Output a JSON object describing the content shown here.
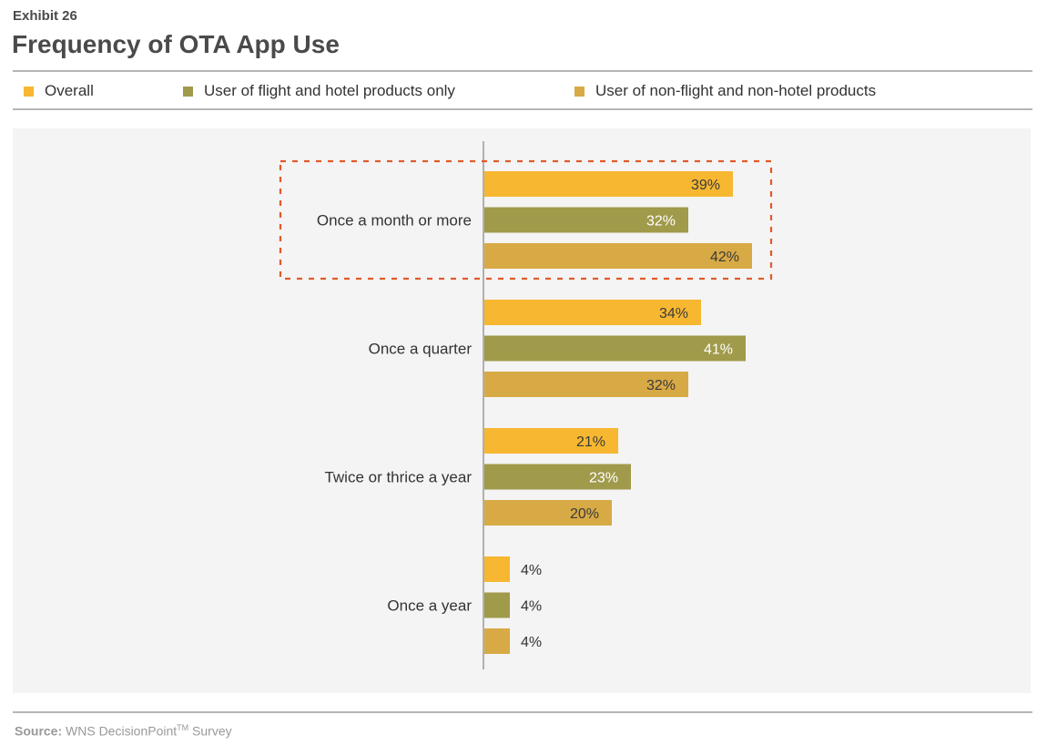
{
  "header": {
    "exhibit": "Exhibit 26",
    "title": "Frequency of OTA App Use"
  },
  "legend": [
    {
      "label": "Overall",
      "color": "#f7b731"
    },
    {
      "label": "User of flight and hotel products only",
      "color": "#a09a4b"
    },
    {
      "label": "User of non-flight and non-hotel products",
      "color": "#d8aa45"
    }
  ],
  "footer": {
    "source_label": "Source:",
    "source_text": "WNS DecisionPoint",
    "source_tm": "TM",
    "source_suffix": " Survey"
  },
  "chart_data": {
    "type": "bar",
    "orientation": "horizontal",
    "categories": [
      "Once a month or more",
      "Once a quarter",
      "Twice or thrice a year",
      "Once a year"
    ],
    "series": [
      {
        "name": "Overall",
        "values": [
          39,
          34,
          21,
          4
        ],
        "labels": [
          "39%",
          "34%",
          "21%",
          "4%"
        ],
        "color": "#f7b731"
      },
      {
        "name": "User of flight and hotel products only",
        "values": [
          32,
          41,
          23,
          4
        ],
        "labels": [
          "32%",
          "41%",
          "23%",
          "4%"
        ],
        "color": "#a09a4b"
      },
      {
        "name": "User of non-flight and non-hotel products",
        "values": [
          42,
          32,
          20,
          4
        ],
        "labels": [
          "42%",
          "32%",
          "20%",
          "4%"
        ],
        "color": "#d8aa45"
      }
    ],
    "xlim": [
      0,
      45
    ],
    "grid": false,
    "legend_position": "top",
    "highlighted_category": "Once a month or more",
    "highlight_color": "#e05a2b"
  }
}
